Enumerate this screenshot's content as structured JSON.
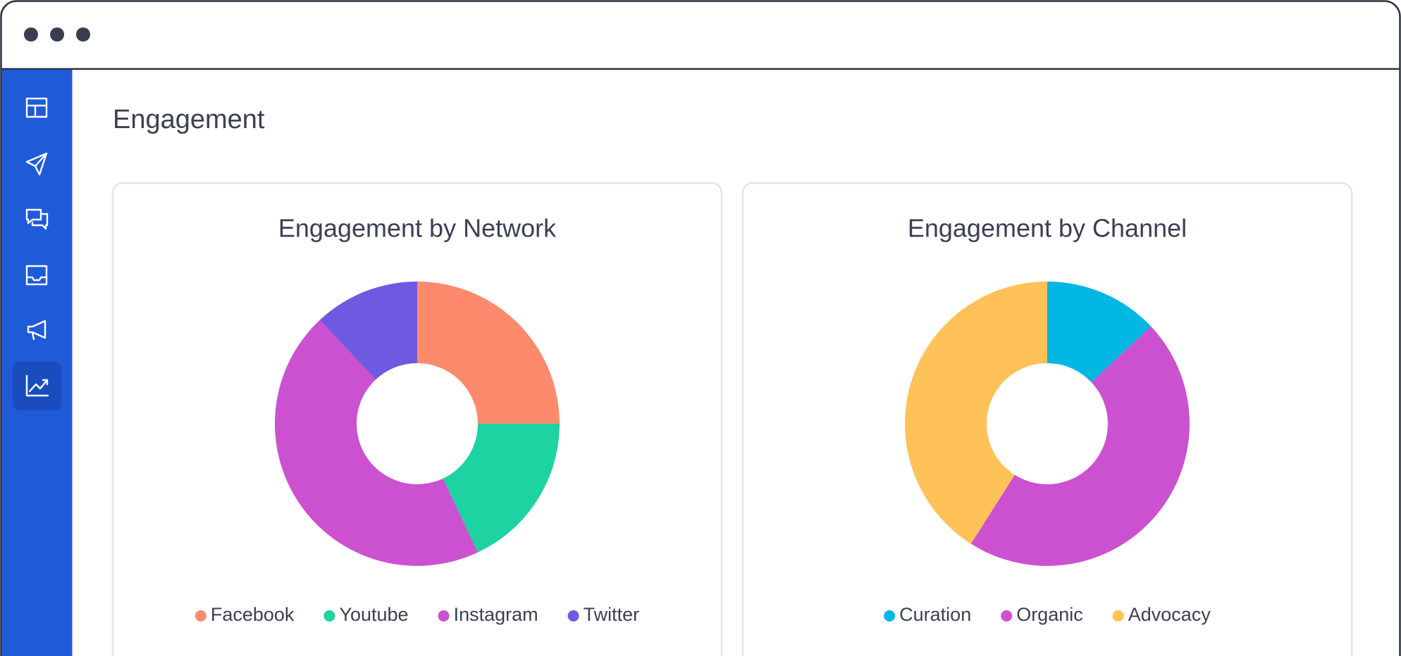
{
  "header": {
    "title": "Engagement"
  },
  "chart_data": [
    {
      "type": "donut",
      "title": "Engagement by Network",
      "categories": [
        "Facebook",
        "Youtube",
        "Instagram",
        "Twitter"
      ],
      "values": [
        25,
        18,
        45,
        12
      ],
      "colors": [
        "#fe8a6e",
        "#1dd3a1",
        "#cb51d0",
        "#6e5ae0"
      ]
    },
    {
      "type": "donut",
      "title": "Engagement by Channel",
      "categories": [
        "Curation",
        "Organic",
        "Advocacy"
      ],
      "values": [
        13,
        46,
        41
      ],
      "colors": [
        "#00b7e3",
        "#cb51d0",
        "#fec258"
      ]
    }
  ]
}
